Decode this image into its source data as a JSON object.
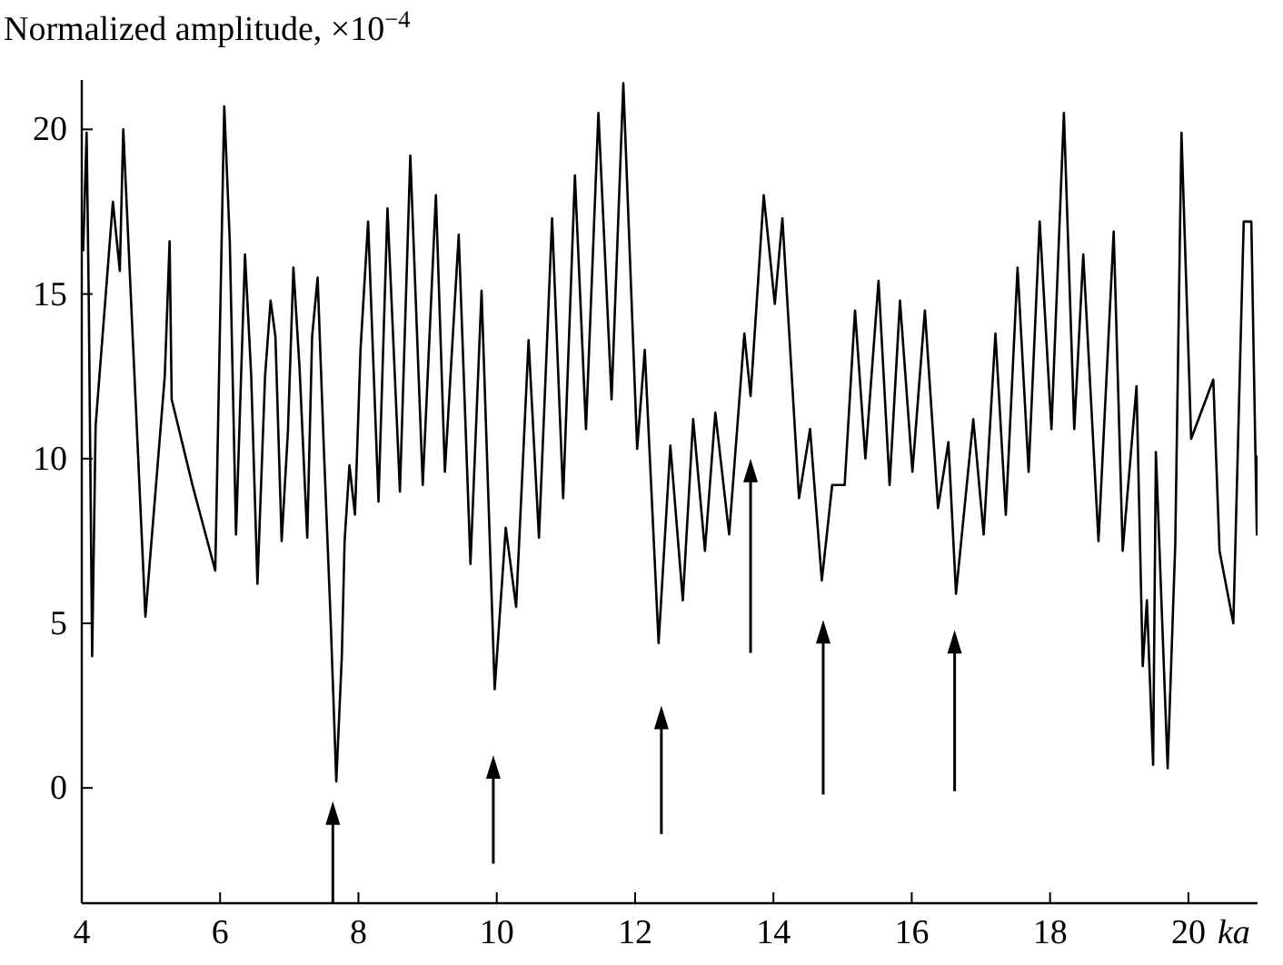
{
  "chart_data": {
    "type": "line",
    "ylabel": "Normalized amplitude, ×10$^{−4}$",
    "xlabel": "ka",
    "xlim": [
      4,
      21
    ],
    "xticks": [
      4,
      6,
      8,
      10,
      12,
      14,
      16,
      18,
      20
    ],
    "ylim": [
      -3.5,
      21.5
    ],
    "yticks": [
      0,
      5,
      10,
      15,
      20
    ],
    "grid": false,
    "marker": "none",
    "line_style": "solid",
    "series": [
      {
        "color": "#000000",
        "x": [
          4.02,
          4.07,
          4.1,
          4.15,
          4.2,
          4.45,
          4.55,
          4.6,
          4.92,
          5.2,
          5.27,
          5.3,
          5.6,
          5.93,
          6.06,
          6.14,
          6.23,
          6.36,
          6.45,
          6.54,
          6.65,
          6.73,
          6.8,
          6.89,
          6.98,
          7.06,
          7.15,
          7.26,
          7.33,
          7.41,
          7.5,
          7.6,
          7.68,
          7.76,
          7.8,
          7.87,
          7.95,
          8.03,
          8.14,
          8.29,
          8.42,
          8.6,
          8.75,
          8.93,
          9.12,
          9.25,
          9.45,
          9.62,
          9.78,
          9.97,
          10.13,
          10.28,
          10.46,
          10.61,
          10.8,
          10.96,
          11.13,
          11.29,
          11.47,
          11.66,
          11.83,
          12.03,
          12.14,
          12.34,
          12.51,
          12.69,
          12.84,
          13.01,
          13.16,
          13.36,
          13.58,
          13.67,
          13.86,
          14.02,
          14.13,
          14.37,
          14.53,
          14.7,
          14.85,
          15.03,
          15.18,
          15.33,
          15.52,
          15.68,
          15.83,
          16.01,
          16.19,
          16.38,
          16.53,
          16.64,
          16.89,
          17.04,
          17.21,
          17.36,
          17.53,
          17.69,
          17.85,
          18.02,
          18.2,
          18.35,
          18.48,
          18.7,
          18.92,
          19.05,
          19.25,
          19.34,
          19.4,
          19.49,
          19.53,
          19.7,
          19.81,
          19.9,
          20.04,
          20.36,
          20.45,
          20.65,
          20.8,
          20.91,
          20.99,
          21.0
        ],
        "values": [
          16.3,
          19.9,
          15,
          4,
          11,
          17.8,
          15.7,
          20,
          5.2,
          12.5,
          16.6,
          11.8,
          9.2,
          6.6,
          20.7,
          16.6,
          7.7,
          16.2,
          12.5,
          6.2,
          12.5,
          14.8,
          13.7,
          7.5,
          10.8,
          15.8,
          12.7,
          7.6,
          13.7,
          15.5,
          10.3,
          5,
          0.2,
          4,
          7.5,
          9.8,
          8.3,
          13.3,
          17.2,
          8.7,
          17.6,
          9.0,
          19.2,
          9.2,
          18,
          9.6,
          16.8,
          6.8,
          15.1,
          3.0,
          7.9,
          5.5,
          13.6,
          7.6,
          17.3,
          8.8,
          18.6,
          10.9,
          20.5,
          11.8,
          21.4,
          10.3,
          13.3,
          4.4,
          10.4,
          5.7,
          11.2,
          7.2,
          11.4,
          7.7,
          13.8,
          11.9,
          18,
          14.7,
          17.3,
          8.8,
          10.9,
          6.3,
          9.2,
          9.2,
          14.5,
          10.0,
          15.4,
          9.2,
          14.8,
          9.6,
          14.5,
          8.5,
          10.5,
          5.9,
          11.2,
          7.7,
          13.8,
          8.3,
          15.8,
          9.6,
          17.2,
          10.9,
          20.5,
          10.9,
          16.2,
          7.5,
          16.9,
          7.2,
          12.2,
          3.7,
          5.7,
          0.7,
          10.2,
          0.6,
          7.4,
          19.9,
          10.6,
          12.4,
          7.2,
          5.0,
          17.2,
          17.2,
          7.7,
          10.1
        ]
      }
    ]
  }
}
